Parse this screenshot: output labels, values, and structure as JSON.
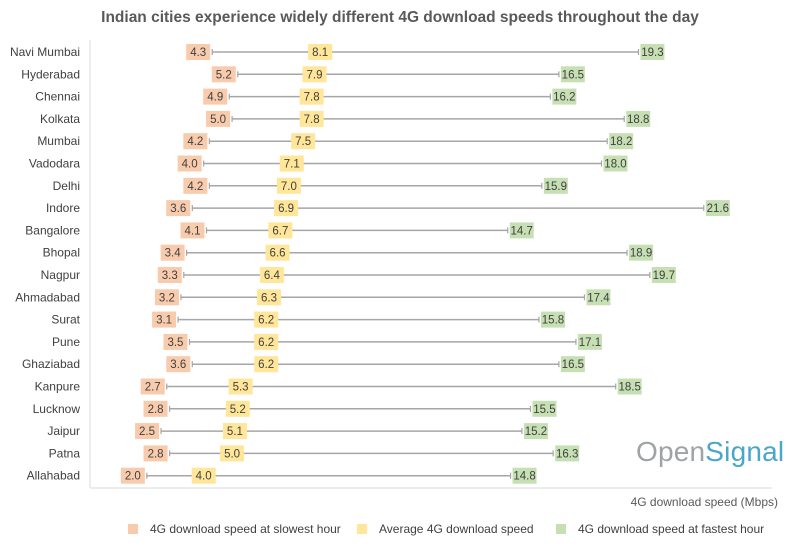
{
  "title": "Indian cities experience widely different 4G download speeds throughout the day",
  "x_axis_label": "4G download speed (Mbps)",
  "brand": {
    "part1": "Open",
    "part2": "Signal"
  },
  "colors": {
    "slowest": "#f8cbad",
    "average": "#ffe699",
    "fastest": "#c6e0b4",
    "line": "#a6a6a6",
    "axis": "#d9d9d9"
  },
  "legend": [
    {
      "label": "4G download speed at slowest hour",
      "series": "slowest"
    },
    {
      "label": "Average 4G download speed",
      "series": "average"
    },
    {
      "label": "4G download speed at fastest hour",
      "series": "fastest"
    }
  ],
  "chart_data": {
    "type": "dot-range",
    "title": "Indian cities experience widely different 4G download speeds throughout the day",
    "xlabel": "4G download speed (Mbps)",
    "xlim": [
      0,
      24
    ],
    "categories": [
      "Navi Mumbai",
      "Hyderabad",
      "Chennai",
      "Kolkata",
      "Mumbai",
      "Vadodara",
      "Delhi",
      "Indore",
      "Bangalore",
      "Bhopal",
      "Nagpur",
      "Ahmadabad",
      "Surat",
      "Pune",
      "Ghaziabad",
      "Kanpure",
      "Lucknow",
      "Jaipur",
      "Patna",
      "Allahabad"
    ],
    "series": [
      {
        "name": "4G download speed at slowest hour",
        "key": "slowest",
        "values": [
          4.3,
          5.2,
          4.9,
          5.0,
          4.2,
          4.0,
          4.2,
          3.6,
          4.1,
          3.4,
          3.3,
          3.2,
          3.1,
          3.5,
          3.6,
          2.7,
          2.8,
          2.5,
          2.8,
          2.0
        ]
      },
      {
        "name": "Average 4G download speed",
        "key": "average",
        "values": [
          8.1,
          7.9,
          7.8,
          7.8,
          7.5,
          7.1,
          7.0,
          6.9,
          6.7,
          6.6,
          6.4,
          6.3,
          6.2,
          6.2,
          6.2,
          5.3,
          5.2,
          5.1,
          5.0,
          4.0
        ]
      },
      {
        "name": "4G download speed at fastest hour",
        "key": "fastest",
        "values": [
          19.3,
          16.5,
          16.2,
          18.8,
          18.2,
          18.0,
          15.9,
          21.6,
          14.7,
          18.9,
          19.7,
          17.4,
          15.8,
          17.1,
          16.5,
          18.5,
          15.5,
          15.2,
          16.3,
          14.8
        ]
      }
    ],
    "legend_position": "bottom",
    "grid": false
  }
}
